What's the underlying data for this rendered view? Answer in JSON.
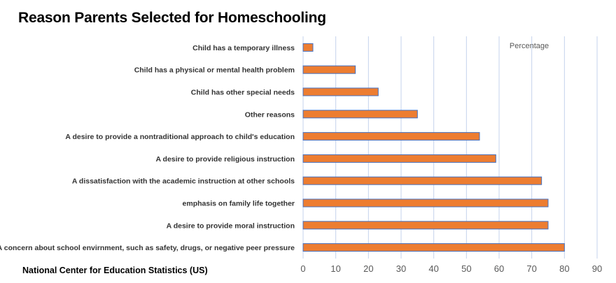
{
  "chart_data": {
    "type": "bar",
    "orientation": "horizontal",
    "title": "Reason Parents Selected for Homeschooling",
    "categories": [
      "Child has a temporary illness",
      "Child has a physical or mental health problem",
      "Child has other special needs",
      "Other reasons",
      "A desire to provide a nontraditional approach to child's education",
      "A desire to provide religious instruction",
      "A dissatisfaction with the academic instruction at other schools",
      "emphasis on family life together",
      "A desire to provide moral instruction",
      "A concern about school envirnment, such as safety, drugs, or negative peer pressure"
    ],
    "series": [
      {
        "name": "Percentage",
        "values": [
          3,
          16,
          23,
          35,
          54,
          59,
          73,
          75,
          75,
          80
        ]
      }
    ],
    "xlabel": "",
    "ylabel": "",
    "xlim": [
      0,
      90
    ],
    "xticks": [
      0,
      10,
      20,
      30,
      40,
      50,
      60,
      70,
      80,
      90
    ],
    "grid": true,
    "legend": "top-right",
    "source": "National Center for Education Statistics (US)",
    "colors": {
      "bar_fill": "#ED7D31",
      "bar_stroke": "#4472C4",
      "grid": "#C5D3EC"
    }
  }
}
